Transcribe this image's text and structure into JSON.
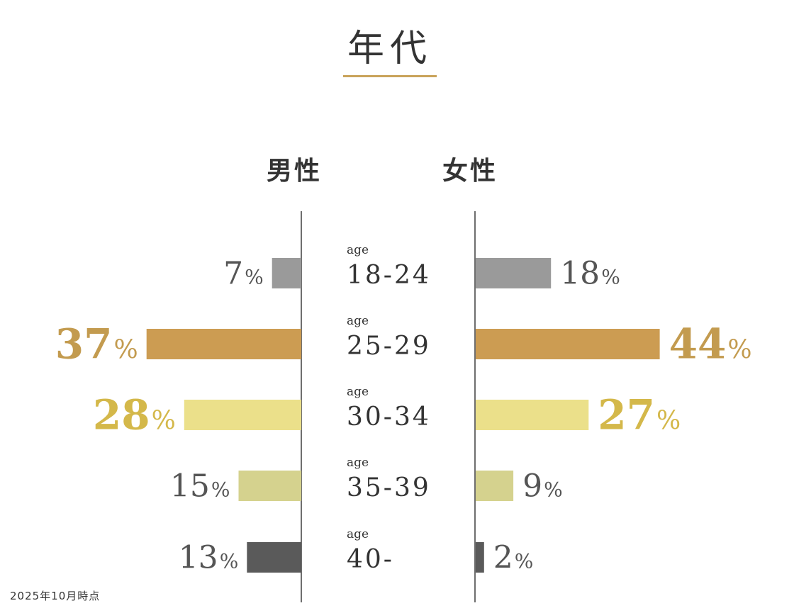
{
  "header": {
    "title": "年代"
  },
  "footnote": "2025年10月時点",
  "chart_data": {
    "type": "bar",
    "orientation": "horizontal-butterfly",
    "title": "年代",
    "age_prefix": "age",
    "categories": [
      "18-24",
      "25-29",
      "30-34",
      "35-39",
      "40-"
    ],
    "series": [
      {
        "name": "男性",
        "values": [
          7,
          37,
          28,
          15,
          13
        ],
        "side": "left"
      },
      {
        "name": "女性",
        "values": [
          18,
          44,
          27,
          9,
          2
        ],
        "side": "right"
      }
    ],
    "unit": "%",
    "category_colors": [
      "#9a9a9a",
      "#cc9c52",
      "#ebe08a",
      "#d5d28e",
      "#5a5a5a"
    ],
    "label_colors": [
      "#555555",
      "#c39b4f",
      "#d4b84a",
      "#555555",
      "#555555"
    ],
    "emphasized_categories": [
      "25-29",
      "30-34"
    ],
    "xlim": [
      0,
      44
    ]
  }
}
